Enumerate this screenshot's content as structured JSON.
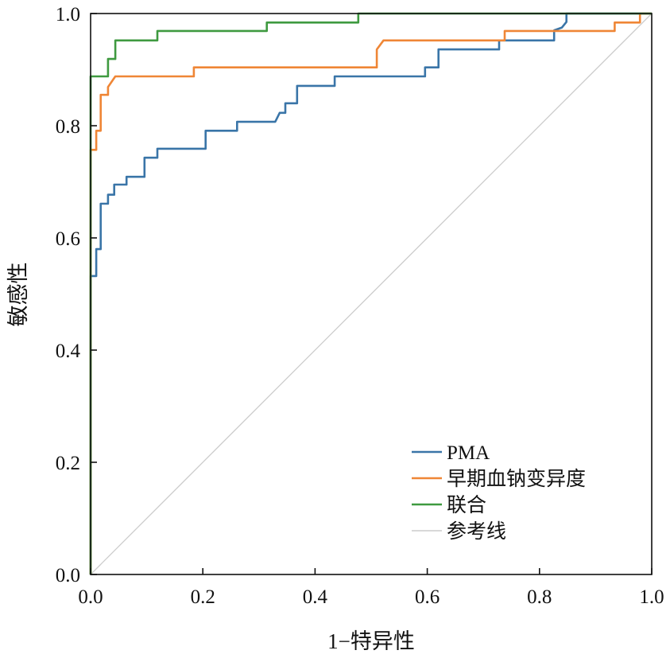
{
  "chart_data": {
    "type": "line",
    "title": "",
    "xlabel": "1−特异性",
    "ylabel": "敏感性",
    "xlim": [
      0,
      1
    ],
    "ylim": [
      0,
      1
    ],
    "xticks": [
      "0.0",
      "0.2",
      "0.4",
      "0.6",
      "0.8",
      "1.0"
    ],
    "yticks": [
      "0.0",
      "0.2",
      "0.4",
      "0.6",
      "0.8",
      "1.0"
    ],
    "grid": false,
    "legend_position": "bottom-right",
    "series": [
      {
        "name": "PMA",
        "color": "#3a75a8",
        "step": true,
        "points": [
          [
            0,
            0
          ],
          [
            0,
            0.532
          ],
          [
            0.01,
            0.532
          ],
          [
            0.01,
            0.58
          ],
          [
            0.018,
            0.58
          ],
          [
            0.018,
            0.661
          ],
          [
            0.031,
            0.661
          ],
          [
            0.031,
            0.677
          ],
          [
            0.042,
            0.677
          ],
          [
            0.042,
            0.695
          ],
          [
            0.064,
            0.695
          ],
          [
            0.064,
            0.709
          ],
          [
            0.096,
            0.709
          ],
          [
            0.096,
            0.743
          ],
          [
            0.119,
            0.743
          ],
          [
            0.119,
            0.759
          ],
          [
            0.205,
            0.759
          ],
          [
            0.205,
            0.791
          ],
          [
            0.261,
            0.791
          ],
          [
            0.261,
            0.807
          ],
          [
            0.329,
            0.807
          ],
          [
            0.337,
            0.823
          ],
          [
            0.347,
            0.823
          ],
          [
            0.347,
            0.84
          ],
          [
            0.368,
            0.84
          ],
          [
            0.368,
            0.871
          ],
          [
            0.435,
            0.871
          ],
          [
            0.435,
            0.888
          ],
          [
            0.596,
            0.888
          ],
          [
            0.596,
            0.904
          ],
          [
            0.62,
            0.904
          ],
          [
            0.62,
            0.936
          ],
          [
            0.728,
            0.936
          ],
          [
            0.728,
            0.952
          ],
          [
            0.826,
            0.952
          ],
          [
            0.826,
            0.97
          ],
          [
            0.84,
            0.975
          ],
          [
            0.848,
            0.985
          ],
          [
            0.848,
            1.0
          ],
          [
            1.0,
            1.0
          ]
        ]
      },
      {
        "name": "早期血钠变异度",
        "color": "#ef8636",
        "step": true,
        "points": [
          [
            0,
            0
          ],
          [
            0,
            0.757
          ],
          [
            0.01,
            0.757
          ],
          [
            0.01,
            0.791
          ],
          [
            0.018,
            0.791
          ],
          [
            0.018,
            0.855
          ],
          [
            0.031,
            0.855
          ],
          [
            0.031,
            0.869
          ],
          [
            0.044,
            0.888
          ],
          [
            0.184,
            0.888
          ],
          [
            0.184,
            0.904
          ],
          [
            0.51,
            0.904
          ],
          [
            0.51,
            0.936
          ],
          [
            0.522,
            0.952
          ],
          [
            0.738,
            0.952
          ],
          [
            0.738,
            0.969
          ],
          [
            0.934,
            0.969
          ],
          [
            0.934,
            0.984
          ],
          [
            0.979,
            0.984
          ],
          [
            0.979,
            1.0
          ],
          [
            1.0,
            1.0
          ]
        ]
      },
      {
        "name": "联合",
        "color": "#3f9a40",
        "step": true,
        "points": [
          [
            0,
            0
          ],
          [
            0,
            0.888
          ],
          [
            0.031,
            0.888
          ],
          [
            0.031,
            0.919
          ],
          [
            0.044,
            0.919
          ],
          [
            0.044,
            0.952
          ],
          [
            0.119,
            0.952
          ],
          [
            0.119,
            0.969
          ],
          [
            0.314,
            0.969
          ],
          [
            0.314,
            0.984
          ],
          [
            0.477,
            0.984
          ],
          [
            0.477,
            1.0
          ],
          [
            1.0,
            1.0
          ]
        ]
      },
      {
        "name": "参考线",
        "color": "#cccccc",
        "step": false,
        "points": [
          [
            0,
            0
          ],
          [
            1,
            1
          ]
        ]
      }
    ]
  }
}
